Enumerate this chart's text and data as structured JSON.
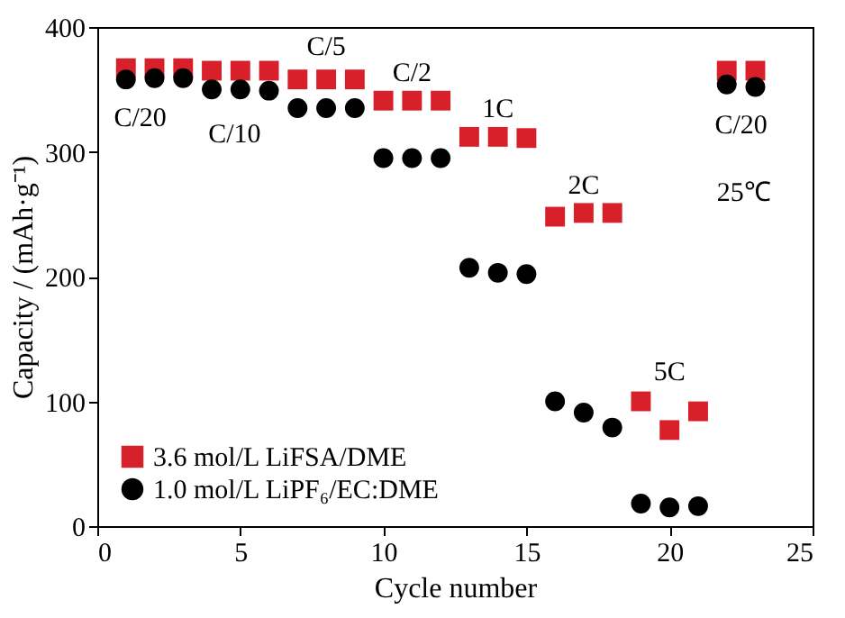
{
  "chart_data": {
    "type": "scatter",
    "xlabel": "Cycle number",
    "ylabel": "Capacity / (mAh·g⁻¹)",
    "x": [
      1,
      2,
      3,
      4,
      5,
      6,
      7,
      8,
      9,
      10,
      11,
      12,
      13,
      14,
      15,
      16,
      17,
      18,
      19,
      20,
      21,
      22,
      23
    ],
    "series": [
      {
        "name": "3.6 mol/L LiFSA/DME",
        "color": "#d7202a",
        "marker": "square",
        "values": [
          367,
          367,
          367,
          365,
          365,
          365,
          358,
          358,
          358,
          341,
          341,
          341,
          312,
          312,
          311,
          248,
          251,
          251,
          100,
          77,
          92,
          365,
          365
        ]
      },
      {
        "name": "1.0 mol/L LiPF₆/EC:DME",
        "color": "#000000",
        "marker": "circle",
        "values": [
          358,
          359,
          359,
          350,
          350,
          349,
          335,
          335,
          335,
          295,
          295,
          295,
          207,
          203,
          202,
          100,
          91,
          79,
          18,
          15,
          16,
          354,
          352
        ]
      }
    ],
    "xlim": [
      0,
      25
    ],
    "ylim": [
      0,
      400
    ],
    "xticks": [
      0,
      5,
      10,
      15,
      20,
      25
    ],
    "yticks": [
      0,
      100,
      200,
      300,
      400
    ],
    "legend": "bottom left",
    "grid": false,
    "annotations": [
      "C/20",
      "C/10",
      "C/5",
      "C/2",
      "1C",
      "2C",
      "5C",
      "C/20",
      "25℃"
    ]
  }
}
